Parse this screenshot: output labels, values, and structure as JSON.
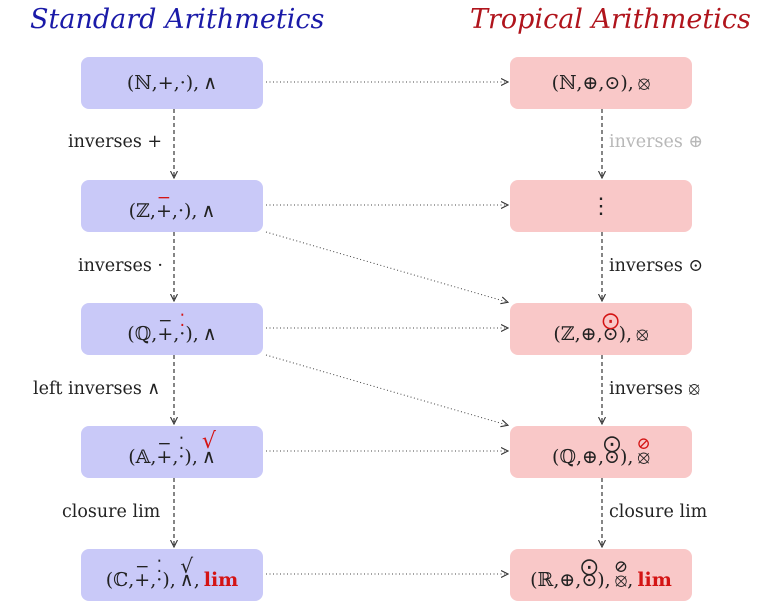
{
  "titles": {
    "standard": "Standard Arithmetics",
    "tropical": "Tropical Arithmetics"
  },
  "standard_nodes": {
    "n": {
      "set": "(ℕ,",
      "op1": "+",
      "sep1": ",",
      "op2": "·",
      "close": "),",
      "op3": "∧"
    },
    "z": {
      "set": "(ℤ,",
      "op1": "+",
      "op1_mark": "−",
      "sep1": ",",
      "op2": "·",
      "close": "),",
      "op3": "∧"
    },
    "q": {
      "set": "(ℚ,",
      "op1": "+",
      "op1_mark": "−",
      "sep1": ",",
      "op2": "·",
      "op2_mark": "⁚",
      "close": "),",
      "op3": "∧"
    },
    "a": {
      "set": "(𝔸,",
      "op1": "+",
      "op1_mark": "−",
      "sep1": ",",
      "op2": "·",
      "op2_mark": "⁚",
      "close": "),",
      "op3": "∧",
      "op3_mark": "√"
    },
    "c": {
      "set": "(ℂ,",
      "op1": "+",
      "op1_mark": "−",
      "sep1": ",",
      "op2": "·",
      "op2_mark": "⁚",
      "close": "),",
      "op3": "∧",
      "op3_mark": "√",
      "sep3": ",",
      "extra": "lim"
    }
  },
  "tropical_nodes": {
    "n": {
      "set": "(ℕ,",
      "op1": "⊕",
      "sep1": ",",
      "op2": "⊙",
      "close": "),",
      "op3": "⦻"
    },
    "dots": {
      "text": "⋮"
    },
    "z": {
      "set": "(ℤ,",
      "op1": "⊕",
      "sep1": ",",
      "op2": "⊙",
      "op2_mark": "⨀",
      "close": "),",
      "op3": "⦻"
    },
    "q": {
      "set": "(ℚ,",
      "op1": "⊕",
      "sep1": ",",
      "op2": "⊙",
      "op2_mark": "⨀",
      "close": "),",
      "op3": "⦻",
      "op3_mark": "⊘"
    },
    "r": {
      "set": "(ℝ,",
      "op1": "⊕",
      "sep1": ",",
      "op2": "⊙",
      "op2_mark": "⨀",
      "close": "),",
      "op3": "⦻",
      "op3_mark": "⊘",
      "sep3": ",",
      "extra": "lim"
    }
  },
  "edge_labels": {
    "std_1": "inverses +",
    "std_2": "inverses ·",
    "std_3": "left inverses ∧",
    "std_4": "closure lim",
    "trop_1": "inverses ⊕",
    "trop_2": "inverses ⊙",
    "trop_3": "inverses ⦻",
    "trop_4": "closure lim"
  },
  "colors": {
    "standard_title": "#1a1aa8",
    "tropical_title": "#b0141c",
    "standard_fill": "#c9c9f8",
    "tropical_fill": "#f9c8c8",
    "highlight": "#d41414",
    "muted_label": "#b8b8b8"
  }
}
